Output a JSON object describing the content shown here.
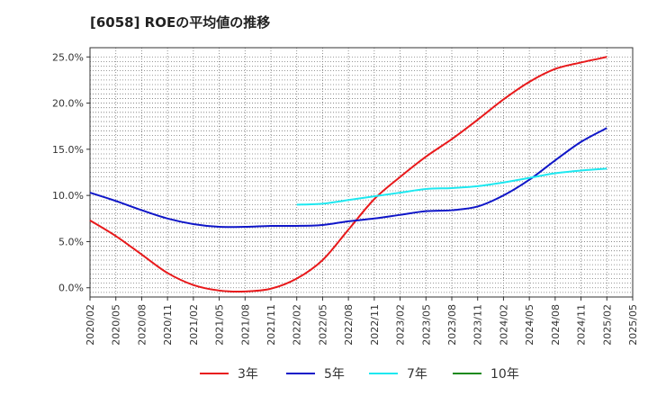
{
  "title": "[6058]  ROEの平均値の推移",
  "chart_data": {
    "type": "line",
    "title": "[6058]  ROEの平均値の推移",
    "xlabel": "",
    "ylabel": "",
    "x_ticks": [
      "2020/02",
      "2020/05",
      "2020/08",
      "2020/11",
      "2021/02",
      "2021/05",
      "2021/08",
      "2021/11",
      "2022/02",
      "2022/05",
      "2022/08",
      "2022/11",
      "2023/02",
      "2023/05",
      "2023/08",
      "2023/11",
      "2024/02",
      "2024/05",
      "2024/08",
      "2024/11",
      "2025/02",
      "2025/05"
    ],
    "y_ticks": [
      "0.0%",
      "5.0%",
      "10.0%",
      "15.0%",
      "20.0%",
      "25.0%"
    ],
    "ylim": [
      -1.0,
      26.0
    ],
    "grid": true,
    "legend_position": "bottom",
    "series": [
      {
        "name": "3年",
        "color": "#e8191b",
        "x": [
          "2020/02",
          "2020/05",
          "2020/08",
          "2020/11",
          "2021/02",
          "2021/05",
          "2021/08",
          "2021/11",
          "2022/02",
          "2022/05",
          "2022/08",
          "2022/11",
          "2023/02",
          "2023/05",
          "2023/08",
          "2023/11",
          "2024/02",
          "2024/05",
          "2024/08",
          "2024/11",
          "2025/02"
        ],
        "values": [
          7.3,
          5.6,
          3.6,
          1.6,
          0.3,
          -0.3,
          -0.4,
          -0.1,
          1.0,
          3.0,
          6.3,
          9.6,
          12.0,
          14.2,
          16.1,
          18.2,
          20.4,
          22.3,
          23.7,
          24.4,
          25.0
        ]
      },
      {
        "name": "5年",
        "color": "#0f16c8",
        "x": [
          "2020/02",
          "2020/05",
          "2020/08",
          "2020/11",
          "2021/02",
          "2021/05",
          "2021/08",
          "2021/11",
          "2022/02",
          "2022/05",
          "2022/08",
          "2022/11",
          "2023/02",
          "2023/05",
          "2023/08",
          "2023/11",
          "2024/02",
          "2024/05",
          "2024/08",
          "2024/11",
          "2025/02"
        ],
        "values": [
          10.3,
          9.4,
          8.4,
          7.5,
          6.9,
          6.6,
          6.6,
          6.7,
          6.7,
          6.8,
          7.2,
          7.5,
          7.9,
          8.3,
          8.4,
          8.8,
          10.0,
          11.7,
          13.8,
          15.8,
          17.3
        ]
      },
      {
        "name": "7年",
        "color": "#1ee8f0",
        "x": [
          "2022/02",
          "2022/05",
          "2022/08",
          "2022/11",
          "2023/02",
          "2023/05",
          "2023/08",
          "2023/11",
          "2024/02",
          "2024/05",
          "2024/08",
          "2024/11",
          "2025/02"
        ],
        "values": [
          9.0,
          9.1,
          9.5,
          9.9,
          10.3,
          10.7,
          10.8,
          11.0,
          11.4,
          11.9,
          12.4,
          12.7,
          12.9
        ]
      },
      {
        "name": "10年",
        "color": "#1a8a1a",
        "x": [],
        "values": []
      }
    ]
  }
}
